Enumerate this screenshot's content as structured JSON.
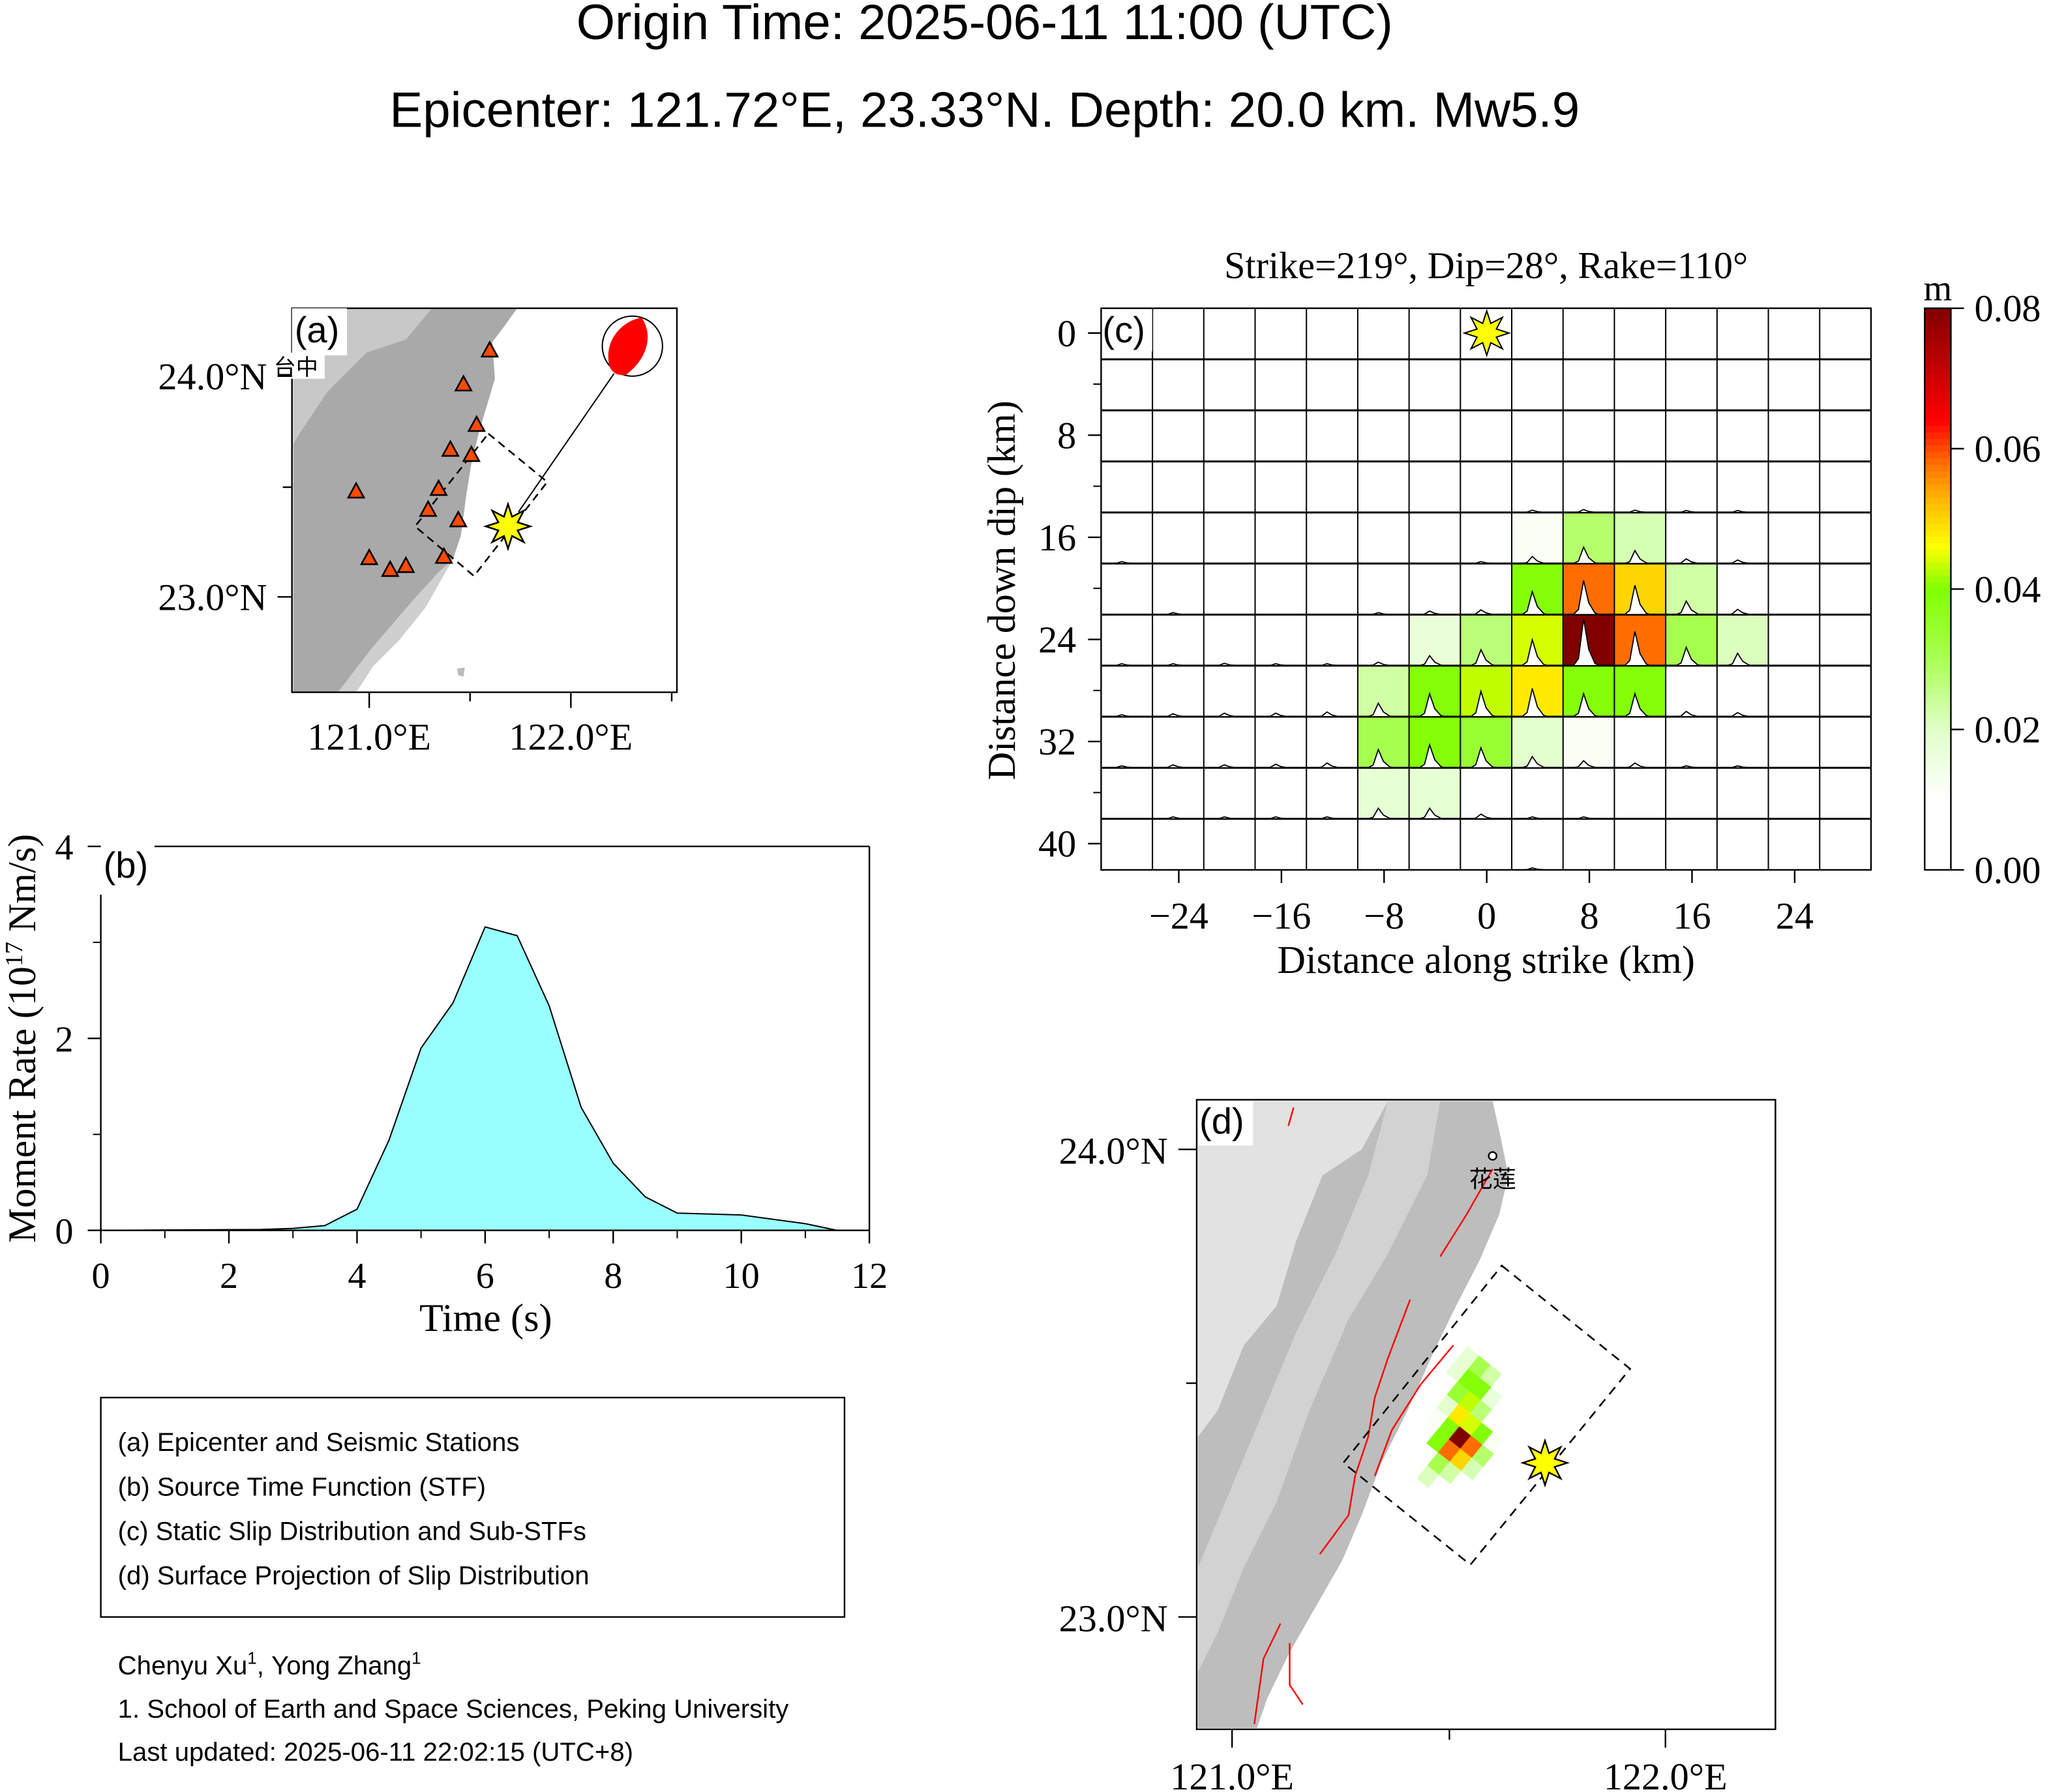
{
  "header": {
    "title_line1": "Origin Time: 2025-06-11 11:00 (UTC)",
    "title_line2": "Epicenter: 121.72°E, 23.33°N. Depth: 20.0 km. Mw5.9"
  },
  "panel_a": {
    "label": "(a)",
    "city": "台中",
    "lat_ticks": [
      "24.0°N",
      "23.0°N"
    ],
    "lon_ticks": [
      "121.0°E",
      "122.0°E"
    ],
    "colors": {
      "land": "#a9a9a9",
      "station": "#ff4a00",
      "epicenter": "#ffff00",
      "beachball": "#ff0000"
    }
  },
  "panel_d": {
    "label": "(d)",
    "city": "花莲",
    "lat_ticks": [
      "24.0°N",
      "23.0°N"
    ],
    "lon_ticks": [
      "121.0°E",
      "122.0°E"
    ],
    "colors": {
      "land": "#bdbdbd",
      "fault": "#ff0000",
      "epicenter": "#ffff00"
    }
  },
  "legend": {
    "items": [
      "(a) Epicenter and Seismic Stations",
      "(b) Source Time Function (STF)",
      "(c) Static Slip Distribution and Sub-STFs",
      "(d) Surface Projection of Slip Distribution"
    ]
  },
  "footer": {
    "author1": "Chenyu Xu",
    "author1_sup": "1",
    "sep": ", ",
    "author2": "Yong Zhang",
    "author2_sup": "1",
    "affiliation": "1. School of Earth and Space Sciences, Peking University",
    "updated": "Last updated: 2025-06-11 22:02:15 (UTC+8)"
  },
  "chart_data": [
    {
      "id": "stf",
      "type": "area",
      "label": "(b)",
      "title": "",
      "xlabel": "Time (s)",
      "ylabel_prefix": "Moment Rate (10",
      "ylabel_exp": "17",
      "ylabel_suffix": " Nm/s)",
      "xlim": [
        0,
        12
      ],
      "ylim": [
        0,
        4
      ],
      "xticks": [
        0,
        2,
        4,
        6,
        8,
        10,
        12
      ],
      "yticks": [
        0,
        2,
        4
      ],
      "fill_color": "#99ffff",
      "x": [
        0,
        2.5,
        3.0,
        3.5,
        4.0,
        4.5,
        5.0,
        5.5,
        6.0,
        6.5,
        7.0,
        7.5,
        8.0,
        8.5,
        9.0,
        10.0,
        11.0,
        11.5,
        12
      ],
      "y": [
        0,
        0.01,
        0.02,
        0.05,
        0.22,
        0.94,
        1.9,
        2.37,
        3.16,
        3.07,
        2.34,
        1.28,
        0.7,
        0.35,
        0.18,
        0.16,
        0.07,
        0,
        0
      ]
    },
    {
      "id": "slip",
      "type": "heatmap",
      "label": "(c)",
      "title": "Strike=219°, Dip=28°, Rake=110°",
      "xlabel": "Distance along strike (km)",
      "ylabel": "Distance down dip (km)",
      "x": [
        -28,
        -24,
        -20,
        -16,
        -12,
        -8,
        -4,
        0,
        4,
        8,
        12,
        16,
        20,
        24,
        28
      ],
      "y": [
        0,
        4,
        8,
        12,
        16,
        20,
        24,
        28,
        32,
        36,
        40
      ],
      "xticks": [
        -24,
        -16,
        -8,
        0,
        8,
        16,
        24
      ],
      "yticks": [
        0,
        8,
        16,
        24,
        32,
        40
      ],
      "hypocenter": [
        0,
        0
      ],
      "colorbar": {
        "unit": "m",
        "range": [
          0,
          0.08
        ],
        "ticks": [
          "0.00",
          "0.02",
          "0.04",
          "0.06",
          "0.08"
        ],
        "stops": [
          [
            0,
            "#ffffff"
          ],
          [
            0.01,
            "#ffffff"
          ],
          [
            0.02,
            "#e0ffc8"
          ],
          [
            0.03,
            "#aaff55"
          ],
          [
            0.04,
            "#80ff00"
          ],
          [
            0.046,
            "#ffff00"
          ],
          [
            0.052,
            "#ffc000"
          ],
          [
            0.058,
            "#ff6d00"
          ],
          [
            0.064,
            "#ff0000"
          ],
          [
            0.08,
            "#800000"
          ]
        ]
      },
      "slip": [
        [
          0,
          0,
          0,
          0,
          0,
          0,
          0,
          0,
          0,
          0,
          0,
          0,
          0,
          0,
          0
        ],
        [
          0,
          0,
          0,
          0,
          0,
          0,
          0,
          0,
          0,
          0,
          0,
          0,
          0,
          0,
          0
        ],
        [
          0,
          0,
          0,
          0,
          0,
          0,
          0,
          0,
          0,
          0,
          0,
          0,
          0,
          0,
          0
        ],
        [
          0,
          0,
          0,
          0,
          0,
          0,
          0,
          0,
          0.004,
          0.005,
          0.004,
          0.002,
          0.001,
          0,
          0
        ],
        [
          0.001,
          0,
          0,
          0,
          0,
          0,
          0,
          0.002,
          0.012,
          0.028,
          0.022,
          0.008,
          0.006,
          0,
          0
        ],
        [
          0,
          0.001,
          0,
          0,
          0,
          0.002,
          0.006,
          0.008,
          0.039,
          0.058,
          0.05,
          0.023,
          0.009,
          0,
          0
        ],
        [
          0.001,
          0.002,
          0.004,
          0.002,
          0.002,
          0.006,
          0.017,
          0.027,
          0.044,
          0.08,
          0.058,
          0.031,
          0.021,
          0,
          0
        ],
        [
          0.003,
          0.005,
          0.006,
          0.006,
          0.008,
          0.023,
          0.039,
          0.043,
          0.048,
          0.039,
          0.039,
          0.009,
          0.007,
          0,
          0
        ],
        [
          0.001,
          0.005,
          0.005,
          0.006,
          0.008,
          0.031,
          0.039,
          0.034,
          0.019,
          0.012,
          0.008,
          0.003,
          0.002,
          0,
          0
        ],
        [
          0,
          0.001,
          0.001,
          0.002,
          0.003,
          0.018,
          0.018,
          0.008,
          0.002,
          0.001,
          0,
          0,
          0,
          0,
          0
        ],
        [
          0,
          0,
          0,
          0,
          0,
          0,
          0,
          0,
          0.001,
          0,
          0,
          0,
          0,
          0,
          0
        ]
      ]
    }
  ]
}
